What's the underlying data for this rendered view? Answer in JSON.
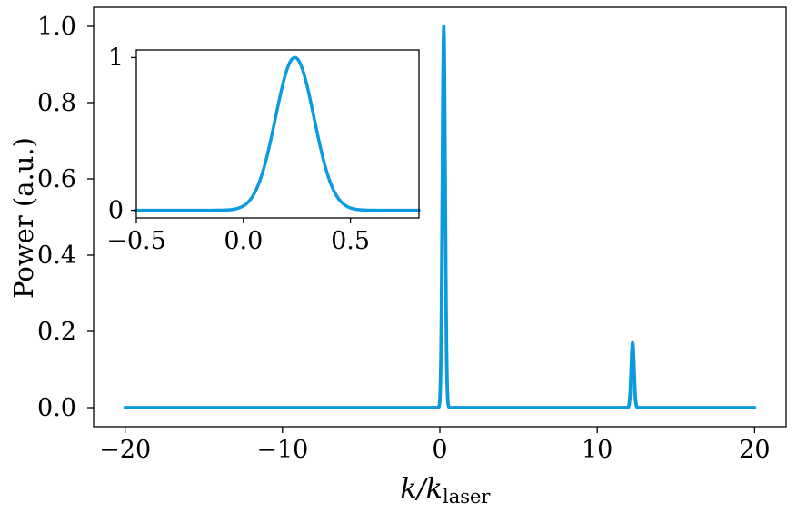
{
  "chart_data": [
    {
      "id": "main",
      "type": "line",
      "xlim": [
        -22,
        22
      ],
      "ylim": [
        -0.05,
        1.05
      ],
      "xticks": [
        -20,
        -10,
        0,
        10,
        20
      ],
      "xtick_labels": [
        "−20",
        "−10",
        "0",
        "10",
        "20"
      ],
      "yticks": [
        0.0,
        0.2,
        0.4,
        0.6,
        0.8,
        1.0
      ],
      "ytick_labels": [
        "0.0",
        "0.2",
        "0.4",
        "0.6",
        "0.8",
        "1.0"
      ],
      "ylabel": "Power (a.u.)",
      "xlabel": {
        "main": "k/k",
        "subscript": "laser"
      },
      "grid": false,
      "line_color": "#0a9ade",
      "series": [
        {
          "x_range": [
            -20,
            20
          ],
          "peaks": [
            {
              "center": 0.25,
              "amplitude": 1.0,
              "width": 0.09
            },
            {
              "center": 12.25,
              "amplitude": 0.17,
              "width": 0.09
            }
          ]
        }
      ]
    },
    {
      "id": "inset",
      "type": "line",
      "xlim": [
        -0.5,
        0.82
      ],
      "ylim": [
        -0.05,
        1.05
      ],
      "xticks": [
        -0.5,
        0.0,
        0.5
      ],
      "xtick_labels": [
        "−0.5",
        "0.0",
        "0.5"
      ],
      "yticks": [
        0,
        1
      ],
      "ytick_labels": [
        "0",
        "1"
      ],
      "grid": false,
      "line_color": "#0a9ade",
      "series": [
        {
          "x_range": [
            -0.5,
            0.82
          ],
          "peaks": [
            {
              "center": 0.24,
              "amplitude": 1.0,
              "width": 0.09
            }
          ]
        }
      ]
    }
  ]
}
